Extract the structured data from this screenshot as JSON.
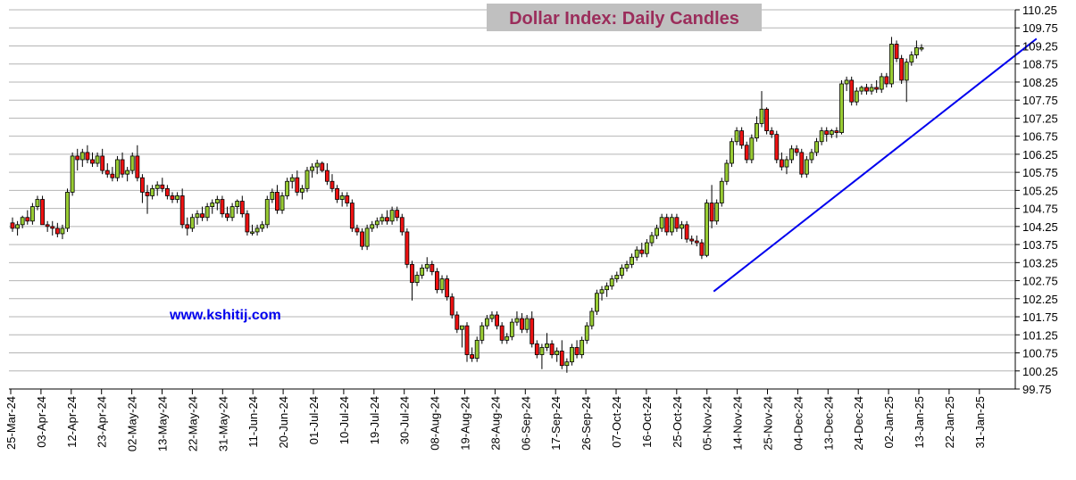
{
  "chart_data": {
    "type": "candlestick",
    "title": "Dollar Index: Daily Candles",
    "watermark": "www.kshitij.com",
    "grid": true,
    "y_axis_side": "right",
    "ylim": [
      99.75,
      110.25
    ],
    "y_ticks": [
      "110.25",
      "109.75",
      "109.25",
      "108.75",
      "108.25",
      "107.75",
      "107.25",
      "106.75",
      "106.25",
      "105.75",
      "105.25",
      "104.75",
      "104.25",
      "103.75",
      "103.25",
      "102.75",
      "102.25",
      "101.75",
      "101.25",
      "100.75",
      "100.25",
      "99.75"
    ],
    "x_ticks": [
      "25-Mar-24",
      "03-Apr-24",
      "12-Apr-24",
      "23-Apr-24",
      "02-May-24",
      "13-May-24",
      "22-May-24",
      "31-May-24",
      "11-Jun-24",
      "20-Jun-24",
      "01-Jul-24",
      "10-Jul-24",
      "19-Jul-24",
      "30-Jul-24",
      "08-Aug-24",
      "19-Aug-24",
      "28-Aug-24",
      "06-Sep-24",
      "17-Sep-24",
      "26-Sep-24",
      "07-Oct-24",
      "16-Oct-24",
      "25-Oct-24",
      "05-Nov-24",
      "14-Nov-24",
      "25-Nov-24",
      "04-Dec-24",
      "13-Dec-24",
      "24-Dec-24",
      "02-Jan-25",
      "13-Jan-25",
      "22-Jan-25",
      "31-Jan-25"
    ],
    "up_color": "#99cc33",
    "down_color": "#ee1111",
    "trendline": {
      "color": "#0000ee",
      "start": {
        "date": "20-Oct-24",
        "value": 102.45
      },
      "end": {
        "date": "24-Jan-25",
        "value": 109.45
      }
    },
    "candles": [
      {
        "o": 104.35,
        "h": 104.5,
        "l": 104.1,
        "c": 104.2
      },
      {
        "o": 104.2,
        "h": 104.4,
        "l": 104.0,
        "c": 104.3
      },
      {
        "o": 104.3,
        "h": 104.55,
        "l": 104.2,
        "c": 104.5
      },
      {
        "o": 104.5,
        "h": 104.7,
        "l": 104.3,
        "c": 104.4
      },
      {
        "o": 104.4,
        "h": 104.9,
        "l": 104.3,
        "c": 104.8
      },
      {
        "o": 104.8,
        "h": 105.1,
        "l": 104.7,
        "c": 105.0
      },
      {
        "o": 105.0,
        "h": 105.1,
        "l": 104.3,
        "c": 104.3
      },
      {
        "o": 104.3,
        "h": 104.4,
        "l": 104.1,
        "c": 104.25
      },
      {
        "o": 104.25,
        "h": 104.4,
        "l": 104.0,
        "c": 104.2
      },
      {
        "o": 104.2,
        "h": 104.35,
        "l": 103.95,
        "c": 104.05
      },
      {
        "o": 104.05,
        "h": 104.3,
        "l": 103.9,
        "c": 104.2
      },
      {
        "o": 104.2,
        "h": 105.3,
        "l": 104.1,
        "c": 105.2
      },
      {
        "o": 105.2,
        "h": 106.3,
        "l": 105.1,
        "c": 106.2
      },
      {
        "o": 106.2,
        "h": 106.4,
        "l": 105.8,
        "c": 106.1
      },
      {
        "o": 106.1,
        "h": 106.4,
        "l": 105.9,
        "c": 106.3
      },
      {
        "o": 106.3,
        "h": 106.5,
        "l": 106.0,
        "c": 106.1
      },
      {
        "o": 106.1,
        "h": 106.3,
        "l": 105.9,
        "c": 106.0
      },
      {
        "o": 106.0,
        "h": 106.3,
        "l": 105.9,
        "c": 106.2
      },
      {
        "o": 106.2,
        "h": 106.4,
        "l": 105.7,
        "c": 105.8
      },
      {
        "o": 105.8,
        "h": 106.0,
        "l": 105.6,
        "c": 105.7
      },
      {
        "o": 105.7,
        "h": 105.9,
        "l": 105.5,
        "c": 105.6
      },
      {
        "o": 105.6,
        "h": 106.2,
        "l": 105.5,
        "c": 106.1
      },
      {
        "o": 106.1,
        "h": 106.3,
        "l": 105.6,
        "c": 105.7
      },
      {
        "o": 105.7,
        "h": 105.9,
        "l": 105.5,
        "c": 105.8
      },
      {
        "o": 105.8,
        "h": 106.3,
        "l": 105.7,
        "c": 106.2
      },
      {
        "o": 106.2,
        "h": 106.5,
        "l": 105.5,
        "c": 105.6
      },
      {
        "o": 105.6,
        "h": 105.7,
        "l": 104.9,
        "c": 105.2
      },
      {
        "o": 105.2,
        "h": 105.4,
        "l": 104.6,
        "c": 105.1
      },
      {
        "o": 105.1,
        "h": 105.4,
        "l": 105.0,
        "c": 105.3
      },
      {
        "o": 105.3,
        "h": 105.5,
        "l": 105.1,
        "c": 105.4
      },
      {
        "o": 105.4,
        "h": 105.6,
        "l": 105.2,
        "c": 105.3
      },
      {
        "o": 105.3,
        "h": 105.4,
        "l": 105.0,
        "c": 105.1
      },
      {
        "o": 105.1,
        "h": 105.2,
        "l": 104.9,
        "c": 105.0
      },
      {
        "o": 105.0,
        "h": 105.2,
        "l": 104.9,
        "c": 105.1
      },
      {
        "o": 105.1,
        "h": 105.3,
        "l": 104.2,
        "c": 104.3
      },
      {
        "o": 104.3,
        "h": 104.5,
        "l": 104.0,
        "c": 104.2
      },
      {
        "o": 104.2,
        "h": 104.6,
        "l": 104.1,
        "c": 104.5
      },
      {
        "o": 104.5,
        "h": 104.7,
        "l": 104.3,
        "c": 104.6
      },
      {
        "o": 104.6,
        "h": 104.8,
        "l": 104.4,
        "c": 104.5
      },
      {
        "o": 104.5,
        "h": 104.9,
        "l": 104.4,
        "c": 104.8
      },
      {
        "o": 104.8,
        "h": 105.0,
        "l": 104.6,
        "c": 104.9
      },
      {
        "o": 104.9,
        "h": 105.1,
        "l": 104.7,
        "c": 105.0
      },
      {
        "o": 105.0,
        "h": 105.1,
        "l": 104.5,
        "c": 104.6
      },
      {
        "o": 104.6,
        "h": 104.8,
        "l": 104.4,
        "c": 104.5
      },
      {
        "o": 104.5,
        "h": 104.9,
        "l": 104.4,
        "c": 104.8
      },
      {
        "o": 104.8,
        "h": 105.0,
        "l": 104.6,
        "c": 104.95
      },
      {
        "o": 104.95,
        "h": 105.1,
        "l": 104.5,
        "c": 104.6
      },
      {
        "o": 104.6,
        "h": 104.7,
        "l": 104.0,
        "c": 104.1
      },
      {
        "o": 104.1,
        "h": 104.3,
        "l": 104.0,
        "c": 104.1
      },
      {
        "o": 104.1,
        "h": 104.3,
        "l": 104.0,
        "c": 104.2
      },
      {
        "o": 104.2,
        "h": 104.4,
        "l": 104.1,
        "c": 104.3
      },
      {
        "o": 104.3,
        "h": 105.1,
        "l": 104.2,
        "c": 105.0
      },
      {
        "o": 105.0,
        "h": 105.3,
        "l": 104.9,
        "c": 105.2
      },
      {
        "o": 105.2,
        "h": 105.4,
        "l": 104.6,
        "c": 104.7
      },
      {
        "o": 104.7,
        "h": 105.2,
        "l": 104.6,
        "c": 105.1
      },
      {
        "o": 105.1,
        "h": 105.6,
        "l": 105.0,
        "c": 105.5
      },
      {
        "o": 105.5,
        "h": 105.7,
        "l": 105.3,
        "c": 105.6
      },
      {
        "o": 105.6,
        "h": 105.8,
        "l": 105.1,
        "c": 105.2
      },
      {
        "o": 105.2,
        "h": 105.4,
        "l": 105.0,
        "c": 105.3
      },
      {
        "o": 105.3,
        "h": 105.9,
        "l": 105.2,
        "c": 105.8
      },
      {
        "o": 105.8,
        "h": 106.0,
        "l": 105.6,
        "c": 105.9
      },
      {
        "o": 105.9,
        "h": 106.1,
        "l": 105.7,
        "c": 106.0
      },
      {
        "o": 106.0,
        "h": 106.05,
        "l": 105.75,
        "c": 105.8
      },
      {
        "o": 105.8,
        "h": 106.0,
        "l": 105.4,
        "c": 105.5
      },
      {
        "o": 105.5,
        "h": 105.7,
        "l": 105.2,
        "c": 105.3
      },
      {
        "o": 105.3,
        "h": 105.4,
        "l": 104.9,
        "c": 105.0
      },
      {
        "o": 105.0,
        "h": 105.2,
        "l": 104.8,
        "c": 105.1
      },
      {
        "o": 105.1,
        "h": 105.2,
        "l": 104.8,
        "c": 104.9
      },
      {
        "o": 104.9,
        "h": 105.0,
        "l": 104.1,
        "c": 104.2
      },
      {
        "o": 104.2,
        "h": 104.3,
        "l": 104.0,
        "c": 104.1
      },
      {
        "o": 104.1,
        "h": 104.2,
        "l": 103.6,
        "c": 103.7
      },
      {
        "o": 103.7,
        "h": 104.3,
        "l": 103.6,
        "c": 104.2
      },
      {
        "o": 104.2,
        "h": 104.4,
        "l": 104.1,
        "c": 104.3
      },
      {
        "o": 104.3,
        "h": 104.5,
        "l": 104.2,
        "c": 104.4
      },
      {
        "o": 104.4,
        "h": 104.6,
        "l": 104.3,
        "c": 104.5
      },
      {
        "o": 104.5,
        "h": 104.7,
        "l": 104.3,
        "c": 104.4
      },
      {
        "o": 104.4,
        "h": 104.8,
        "l": 104.3,
        "c": 104.7
      },
      {
        "o": 104.7,
        "h": 104.8,
        "l": 104.4,
        "c": 104.5
      },
      {
        "o": 104.5,
        "h": 104.6,
        "l": 104.0,
        "c": 104.1
      },
      {
        "o": 104.1,
        "h": 104.2,
        "l": 103.1,
        "c": 103.2
      },
      {
        "o": 103.2,
        "h": 103.3,
        "l": 102.2,
        "c": 102.7
      },
      {
        "o": 102.7,
        "h": 103.0,
        "l": 102.6,
        "c": 102.9
      },
      {
        "o": 102.9,
        "h": 103.2,
        "l": 102.8,
        "c": 103.1
      },
      {
        "o": 103.1,
        "h": 103.4,
        "l": 103.0,
        "c": 103.2
      },
      {
        "o": 103.2,
        "h": 103.3,
        "l": 102.9,
        "c": 103.0
      },
      {
        "o": 103.0,
        "h": 103.1,
        "l": 102.4,
        "c": 102.5
      },
      {
        "o": 102.5,
        "h": 102.9,
        "l": 102.4,
        "c": 102.8
      },
      {
        "o": 102.8,
        "h": 102.9,
        "l": 102.2,
        "c": 102.3
      },
      {
        "o": 102.3,
        "h": 102.4,
        "l": 101.7,
        "c": 101.8
      },
      {
        "o": 101.8,
        "h": 101.9,
        "l": 101.3,
        "c": 101.4
      },
      {
        "o": 101.4,
        "h": 101.5,
        "l": 100.9,
        "c": 101.5
      },
      {
        "o": 101.5,
        "h": 101.6,
        "l": 100.5,
        "c": 100.7
      },
      {
        "o": 100.7,
        "h": 100.9,
        "l": 100.5,
        "c": 100.6
      },
      {
        "o": 100.6,
        "h": 101.2,
        "l": 100.5,
        "c": 101.1
      },
      {
        "o": 101.1,
        "h": 101.6,
        "l": 101.0,
        "c": 101.5
      },
      {
        "o": 101.5,
        "h": 101.8,
        "l": 101.4,
        "c": 101.7
      },
      {
        "o": 101.7,
        "h": 101.9,
        "l": 101.6,
        "c": 101.8
      },
      {
        "o": 101.8,
        "h": 101.9,
        "l": 101.4,
        "c": 101.5
      },
      {
        "o": 101.5,
        "h": 101.6,
        "l": 101.0,
        "c": 101.1
      },
      {
        "o": 101.1,
        "h": 101.3,
        "l": 101.0,
        "c": 101.2
      },
      {
        "o": 101.2,
        "h": 101.7,
        "l": 101.1,
        "c": 101.6
      },
      {
        "o": 101.6,
        "h": 101.9,
        "l": 101.5,
        "c": 101.7
      },
      {
        "o": 101.7,
        "h": 101.85,
        "l": 101.3,
        "c": 101.4
      },
      {
        "o": 101.4,
        "h": 101.8,
        "l": 101.3,
        "c": 101.7
      },
      {
        "o": 101.7,
        "h": 101.9,
        "l": 100.9,
        "c": 101.0
      },
      {
        "o": 101.0,
        "h": 101.1,
        "l": 100.6,
        "c": 100.7
      },
      {
        "o": 100.7,
        "h": 101.0,
        "l": 100.3,
        "c": 100.9
      },
      {
        "o": 100.9,
        "h": 101.3,
        "l": 100.8,
        "c": 101.0
      },
      {
        "o": 101.0,
        "h": 101.1,
        "l": 100.6,
        "c": 100.7
      },
      {
        "o": 100.7,
        "h": 100.9,
        "l": 100.5,
        "c": 100.8
      },
      {
        "o": 100.8,
        "h": 101.1,
        "l": 100.3,
        "c": 100.4
      },
      {
        "o": 100.4,
        "h": 100.6,
        "l": 100.2,
        "c": 100.5
      },
      {
        "o": 100.5,
        "h": 101.0,
        "l": 100.4,
        "c": 100.9
      },
      {
        "o": 100.9,
        "h": 101.1,
        "l": 100.6,
        "c": 100.7
      },
      {
        "o": 100.7,
        "h": 101.2,
        "l": 100.6,
        "c": 101.1
      },
      {
        "o": 101.1,
        "h": 101.6,
        "l": 101.0,
        "c": 101.5
      },
      {
        "o": 101.5,
        "h": 102.0,
        "l": 101.4,
        "c": 101.9
      },
      {
        "o": 101.9,
        "h": 102.5,
        "l": 101.8,
        "c": 102.4
      },
      {
        "o": 102.4,
        "h": 102.6,
        "l": 102.2,
        "c": 102.5
      },
      {
        "o": 102.5,
        "h": 102.7,
        "l": 102.3,
        "c": 102.6
      },
      {
        "o": 102.6,
        "h": 102.9,
        "l": 102.5,
        "c": 102.8
      },
      {
        "o": 102.8,
        "h": 103.0,
        "l": 102.7,
        "c": 102.9
      },
      {
        "o": 102.9,
        "h": 103.2,
        "l": 102.8,
        "c": 103.1
      },
      {
        "o": 103.1,
        "h": 103.3,
        "l": 103.0,
        "c": 103.2
      },
      {
        "o": 103.2,
        "h": 103.5,
        "l": 103.1,
        "c": 103.4
      },
      {
        "o": 103.4,
        "h": 103.7,
        "l": 103.3,
        "c": 103.6
      },
      {
        "o": 103.6,
        "h": 103.8,
        "l": 103.4,
        "c": 103.5
      },
      {
        "o": 103.5,
        "h": 103.9,
        "l": 103.4,
        "c": 103.8
      },
      {
        "o": 103.8,
        "h": 104.1,
        "l": 103.7,
        "c": 104.0
      },
      {
        "o": 104.0,
        "h": 104.3,
        "l": 103.9,
        "c": 104.2
      },
      {
        "o": 104.2,
        "h": 104.6,
        "l": 104.1,
        "c": 104.5
      },
      {
        "o": 104.5,
        "h": 104.6,
        "l": 104.0,
        "c": 104.1
      },
      {
        "o": 104.1,
        "h": 104.6,
        "l": 104.0,
        "c": 104.5
      },
      {
        "o": 104.5,
        "h": 104.6,
        "l": 104.1,
        "c": 104.2
      },
      {
        "o": 104.2,
        "h": 104.4,
        "l": 103.9,
        "c": 104.3
      },
      {
        "o": 104.3,
        "h": 104.4,
        "l": 103.8,
        "c": 103.9
      },
      {
        "o": 103.9,
        "h": 104.0,
        "l": 103.75,
        "c": 103.85
      },
      {
        "o": 103.85,
        "h": 104.0,
        "l": 103.7,
        "c": 103.8
      },
      {
        "o": 103.8,
        "h": 103.9,
        "l": 103.35,
        "c": 103.45
      },
      {
        "o": 103.45,
        "h": 105.0,
        "l": 103.4,
        "c": 104.9
      },
      {
        "o": 104.9,
        "h": 105.4,
        "l": 104.2,
        "c": 104.4
      },
      {
        "o": 104.4,
        "h": 105.0,
        "l": 104.3,
        "c": 104.9
      },
      {
        "o": 104.9,
        "h": 105.6,
        "l": 104.8,
        "c": 105.5
      },
      {
        "o": 105.5,
        "h": 106.1,
        "l": 105.4,
        "c": 106.0
      },
      {
        "o": 106.0,
        "h": 106.7,
        "l": 105.9,
        "c": 106.6
      },
      {
        "o": 106.6,
        "h": 107.0,
        "l": 106.5,
        "c": 106.9
      },
      {
        "o": 106.9,
        "h": 107.0,
        "l": 106.4,
        "c": 106.5
      },
      {
        "o": 106.5,
        "h": 106.6,
        "l": 106.0,
        "c": 106.1
      },
      {
        "o": 106.1,
        "h": 106.8,
        "l": 106.0,
        "c": 106.7
      },
      {
        "o": 106.7,
        "h": 107.3,
        "l": 106.6,
        "c": 107.1
      },
      {
        "o": 107.1,
        "h": 108.0,
        "l": 107.0,
        "c": 107.5
      },
      {
        "o": 107.5,
        "h": 107.55,
        "l": 106.8,
        "c": 106.9
      },
      {
        "o": 106.9,
        "h": 107.0,
        "l": 106.7,
        "c": 106.8
      },
      {
        "o": 106.8,
        "h": 106.9,
        "l": 106.0,
        "c": 106.1
      },
      {
        "o": 106.1,
        "h": 106.3,
        "l": 105.8,
        "c": 105.9
      },
      {
        "o": 105.9,
        "h": 106.2,
        "l": 105.7,
        "c": 106.1
      },
      {
        "o": 106.1,
        "h": 106.5,
        "l": 106.0,
        "c": 106.4
      },
      {
        "o": 106.4,
        "h": 106.5,
        "l": 106.2,
        "c": 106.3
      },
      {
        "o": 106.3,
        "h": 106.4,
        "l": 105.6,
        "c": 105.7
      },
      {
        "o": 105.7,
        "h": 106.2,
        "l": 105.6,
        "c": 106.1
      },
      {
        "o": 106.1,
        "h": 106.4,
        "l": 106.0,
        "c": 106.3
      },
      {
        "o": 106.3,
        "h": 106.7,
        "l": 106.2,
        "c": 106.6
      },
      {
        "o": 106.6,
        "h": 107.0,
        "l": 106.5,
        "c": 106.9
      },
      {
        "o": 106.9,
        "h": 107.0,
        "l": 106.6,
        "c": 106.8
      },
      {
        "o": 106.8,
        "h": 106.95,
        "l": 106.7,
        "c": 106.9
      },
      {
        "o": 106.9,
        "h": 107.0,
        "l": 106.7,
        "c": 106.85
      },
      {
        "o": 106.85,
        "h": 108.3,
        "l": 106.8,
        "c": 108.2
      },
      {
        "o": 108.2,
        "h": 108.4,
        "l": 108.0,
        "c": 108.3
      },
      {
        "o": 108.3,
        "h": 108.4,
        "l": 107.6,
        "c": 107.7
      },
      {
        "o": 107.7,
        "h": 108.1,
        "l": 107.6,
        "c": 108.0
      },
      {
        "o": 108.0,
        "h": 108.15,
        "l": 107.9,
        "c": 108.1
      },
      {
        "o": 108.1,
        "h": 108.2,
        "l": 107.9,
        "c": 108.0
      },
      {
        "o": 108.0,
        "h": 108.2,
        "l": 107.9,
        "c": 108.1
      },
      {
        "o": 108.1,
        "h": 108.3,
        "l": 107.95,
        "c": 108.05
      },
      {
        "o": 108.05,
        "h": 108.5,
        "l": 107.95,
        "c": 108.4
      },
      {
        "o": 108.4,
        "h": 108.5,
        "l": 108.1,
        "c": 108.2
      },
      {
        "o": 108.2,
        "h": 109.5,
        "l": 108.1,
        "c": 109.3
      },
      {
        "o": 109.3,
        "h": 109.4,
        "l": 108.8,
        "c": 108.9
      },
      {
        "o": 108.9,
        "h": 109.0,
        "l": 108.2,
        "c": 108.3
      },
      {
        "o": 108.3,
        "h": 108.9,
        "l": 107.7,
        "c": 108.8
      },
      {
        "o": 108.8,
        "h": 109.1,
        "l": 108.7,
        "c": 109.0
      },
      {
        "o": 109.0,
        "h": 109.4,
        "l": 108.9,
        "c": 109.2
      },
      {
        "o": 109.2,
        "h": 109.3,
        "l": 109.1,
        "c": 109.2
      }
    ]
  }
}
